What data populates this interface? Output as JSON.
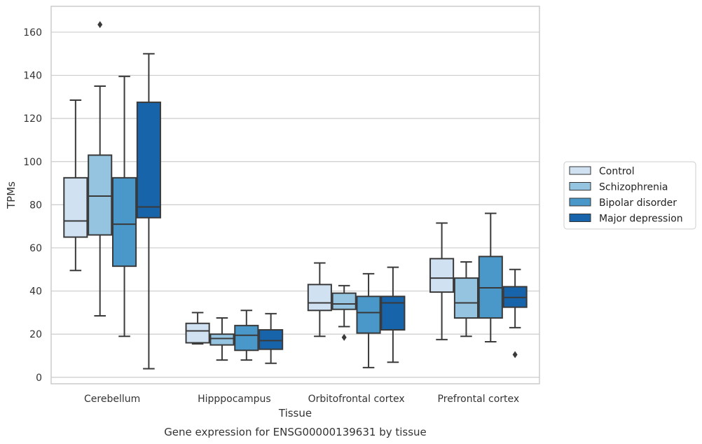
{
  "chart_data": {
    "type": "box",
    "title": "Gene expression for ENSG00000139631 by tissue",
    "xlabel": "Tissue",
    "ylabel": "TPMs",
    "ylim": [
      -3,
      172
    ],
    "yticks": [
      0,
      20,
      40,
      60,
      80,
      100,
      120,
      140,
      160
    ],
    "grid": true,
    "legend_position": "right",
    "categories": [
      "Cerebellum",
      "Hipppocampus",
      "Orbitofrontal cortex",
      "Prefrontal cortex"
    ],
    "series": [
      {
        "name": "Control",
        "color": "#d0e1f2",
        "boxes": [
          {
            "whisker_low": 49.5,
            "q1": 65,
            "median": 72.5,
            "q3": 92.5,
            "whisker_high": 128.5,
            "outliers": []
          },
          {
            "whisker_low": 15.5,
            "q1": 16,
            "median": 21.5,
            "q3": 25,
            "whisker_high": 30,
            "outliers": []
          },
          {
            "whisker_low": 19,
            "q1": 31,
            "median": 34.5,
            "q3": 43,
            "whisker_high": 53,
            "outliers": []
          },
          {
            "whisker_low": 17.5,
            "q1": 39.5,
            "median": 46,
            "q3": 55,
            "whisker_high": 71.5,
            "outliers": []
          }
        ]
      },
      {
        "name": "Schizophrenia",
        "color": "#94c4df",
        "boxes": [
          {
            "whisker_low": 28.5,
            "q1": 66,
            "median": 84,
            "q3": 103,
            "whisker_high": 135,
            "outliers": [
              163.5
            ]
          },
          {
            "whisker_low": 8,
            "q1": 15,
            "median": 18,
            "q3": 20,
            "whisker_high": 27.5,
            "outliers": []
          },
          {
            "whisker_low": 23.5,
            "q1": 31.5,
            "median": 34,
            "q3": 39,
            "whisker_high": 42.5,
            "outliers": [
              18.5
            ]
          },
          {
            "whisker_low": 19,
            "q1": 27.5,
            "median": 34.5,
            "q3": 46,
            "whisker_high": 53.5,
            "outliers": []
          }
        ]
      },
      {
        "name": "Bipolar disorder",
        "color": "#4a98c9",
        "boxes": [
          {
            "whisker_low": 19,
            "q1": 51.5,
            "median": 71,
            "q3": 92.5,
            "whisker_high": 139.5,
            "outliers": []
          },
          {
            "whisker_low": 8,
            "q1": 12.5,
            "median": 19.5,
            "q3": 24,
            "whisker_high": 31,
            "outliers": []
          },
          {
            "whisker_low": 4.5,
            "q1": 20.5,
            "median": 30,
            "q3": 37.5,
            "whisker_high": 48,
            "outliers": []
          },
          {
            "whisker_low": 16.5,
            "q1": 27.5,
            "median": 41.5,
            "q3": 56,
            "whisker_high": 76,
            "outliers": []
          }
        ]
      },
      {
        "name": "Major depression",
        "color": "#1764ab",
        "boxes": [
          {
            "whisker_low": 4,
            "q1": 74,
            "median": 79,
            "q3": 127.5,
            "whisker_high": 150,
            "outliers": []
          },
          {
            "whisker_low": 6.5,
            "q1": 13,
            "median": 17,
            "q3": 22,
            "whisker_high": 29.5,
            "outliers": []
          },
          {
            "whisker_low": 7,
            "q1": 22,
            "median": 34.5,
            "q3": 37.5,
            "whisker_high": 51,
            "outliers": []
          },
          {
            "whisker_low": 23,
            "q1": 32.5,
            "median": 37,
            "q3": 42,
            "whisker_high": 50,
            "outliers": [
              10.5
            ]
          }
        ]
      }
    ]
  }
}
